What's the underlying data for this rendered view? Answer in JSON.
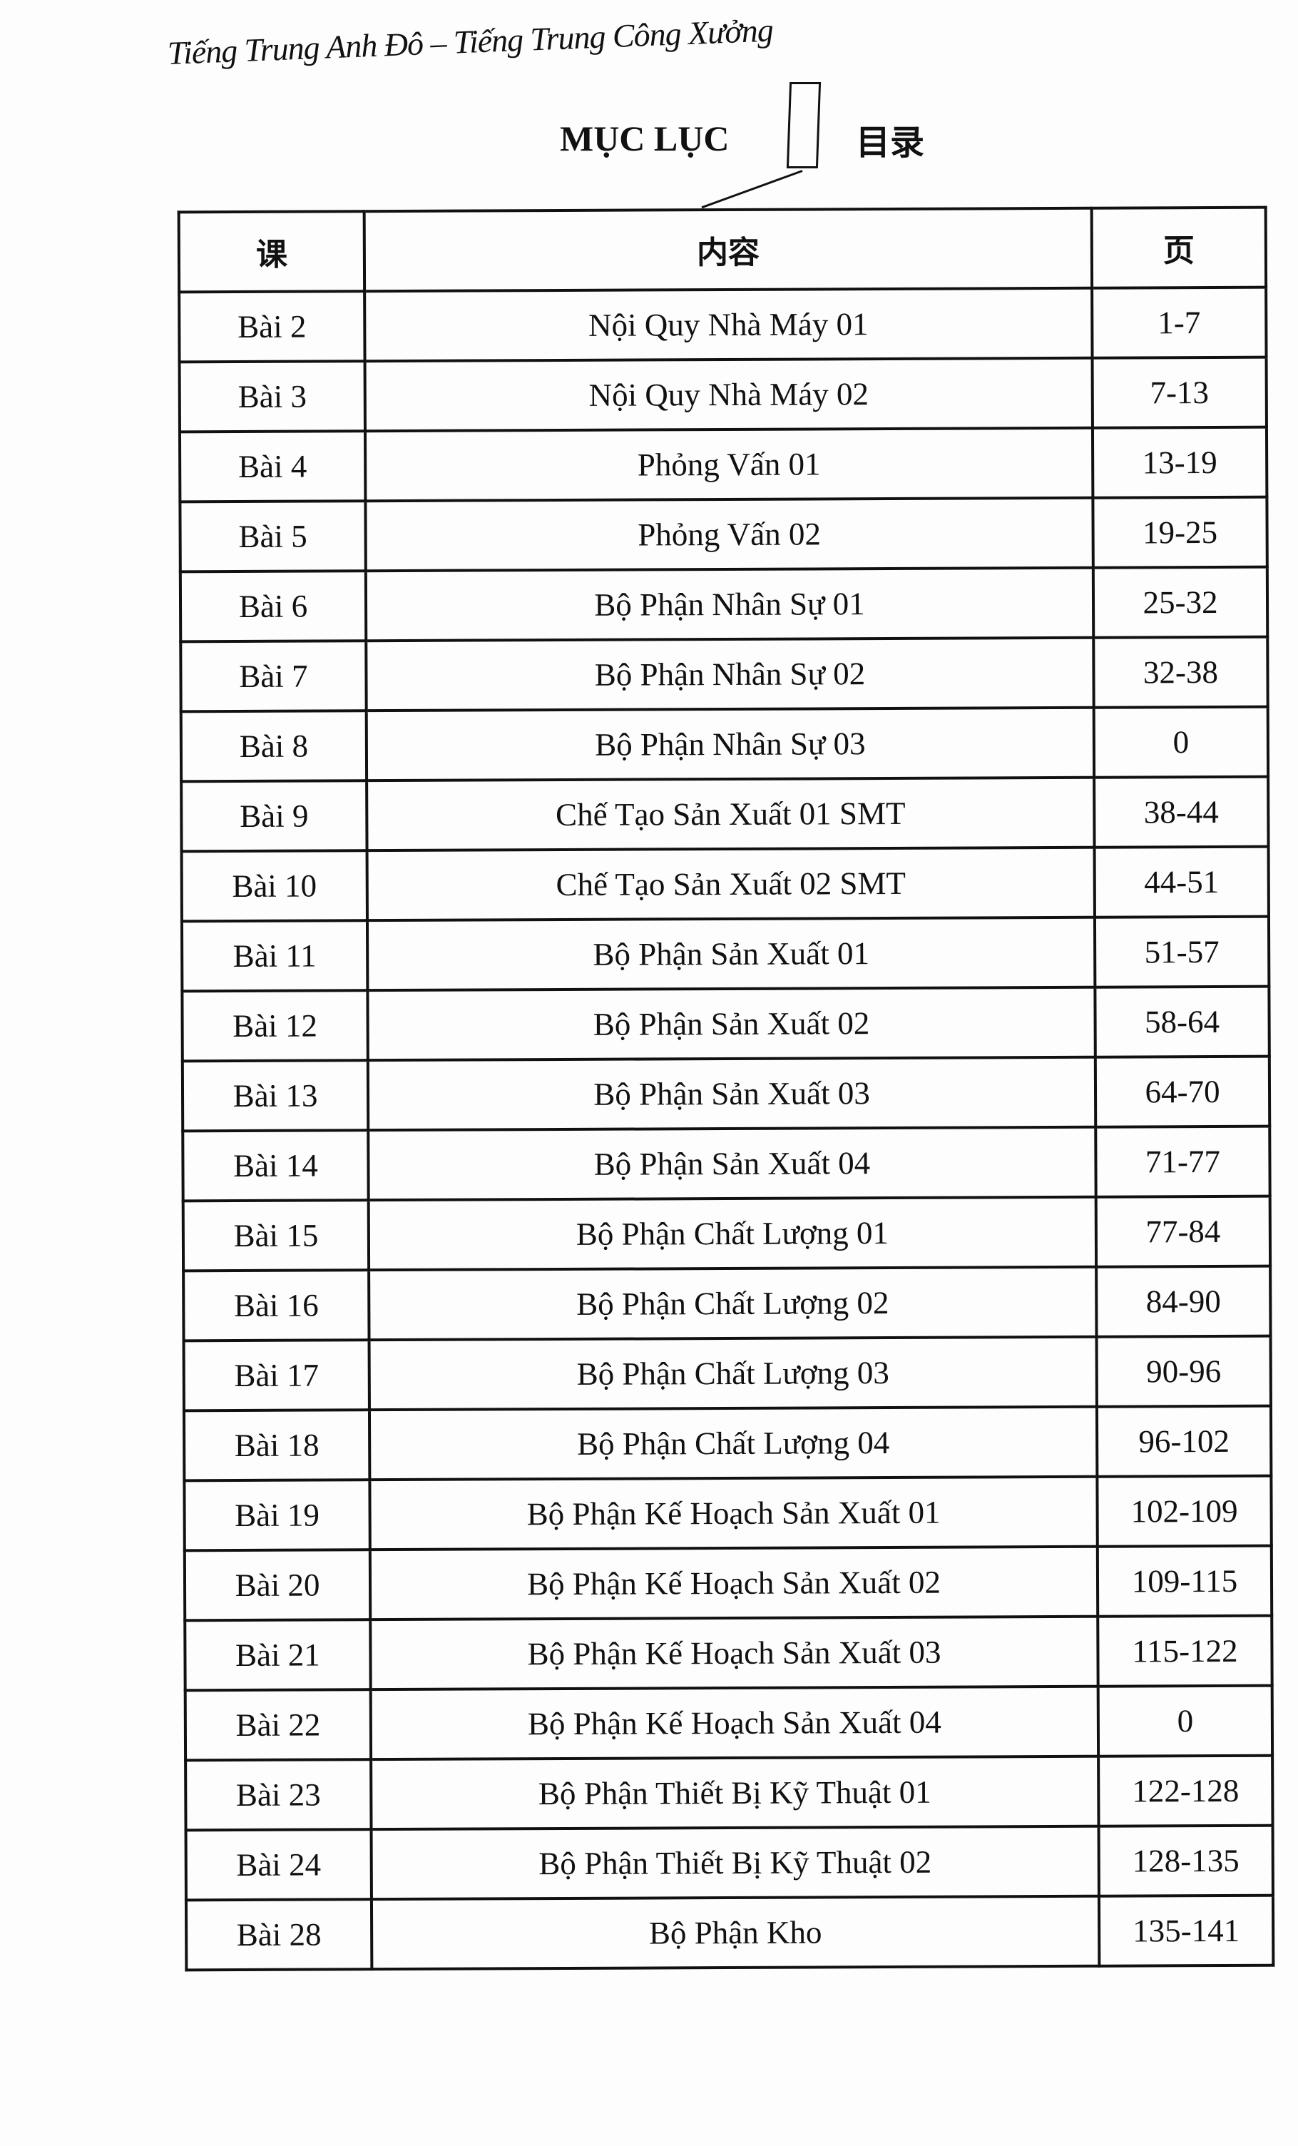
{
  "running_head": "Tiếng Trung Anh Đô – Tiếng Trung Công Xưởng",
  "title": {
    "vietnamese": "MỤC LỤC",
    "chinese": "目录"
  },
  "table": {
    "headers": [
      "课",
      "内容",
      "页"
    ],
    "rows": [
      [
        "Bài 2",
        "Nội Quy Nhà Máy 01",
        "1-7"
      ],
      [
        "Bài 3",
        "Nội Quy Nhà Máy 02",
        "7-13"
      ],
      [
        "Bài 4",
        "Phỏng Vấn 01",
        "13-19"
      ],
      [
        "Bài 5",
        "Phỏng Vấn 02",
        "19-25"
      ],
      [
        "Bài 6",
        "Bộ Phận Nhân Sự 01",
        "25-32"
      ],
      [
        "Bài 7",
        "Bộ Phận Nhân Sự 02",
        "32-38"
      ],
      [
        "Bài 8",
        "Bộ Phận Nhân Sự 03",
        "0"
      ],
      [
        "Bài 9",
        "Chế Tạo Sản Xuất 01 SMT",
        "38-44"
      ],
      [
        "Bài 10",
        "Chế Tạo Sản Xuất 02 SMT",
        "44-51"
      ],
      [
        "Bài 11",
        "Bộ Phận Sản Xuất 01",
        "51-57"
      ],
      [
        "Bài 12",
        "Bộ Phận Sản Xuất 02",
        "58-64"
      ],
      [
        "Bài 13",
        "Bộ Phận Sản Xuất 03",
        "64-70"
      ],
      [
        "Bài 14",
        "Bộ Phận Sản Xuất 04",
        "71-77"
      ],
      [
        "Bài 15",
        "Bộ Phận Chất Lượng 01",
        "77-84"
      ],
      [
        "Bài 16",
        "Bộ Phận Chất Lượng 02",
        "84-90"
      ],
      [
        "Bài 17",
        "Bộ Phận Chất Lượng 03",
        "90-96"
      ],
      [
        "Bài 18",
        "Bộ Phận Chất Lượng 04",
        "96-102"
      ],
      [
        "Bài 19",
        "Bộ Phận Kế Hoạch Sản Xuất 01",
        "102-109"
      ],
      [
        "Bài 20",
        "Bộ Phận Kế Hoạch Sản Xuất 02",
        "109-115"
      ],
      [
        "Bài 21",
        "Bộ Phận Kế Hoạch Sản Xuất 03",
        "115-122"
      ],
      [
        "Bài 22",
        "Bộ Phận Kế Hoạch Sản Xuất 04",
        "0"
      ],
      [
        "Bài 23",
        "Bộ Phận Thiết Bị Kỹ Thuật 01",
        "122-128"
      ],
      [
        "Bài 24",
        "Bộ Phận Thiết Bị Kỹ Thuật 02",
        "128-135"
      ],
      [
        "Bài 28",
        "Bộ Phận Kho",
        "135-141"
      ]
    ]
  }
}
